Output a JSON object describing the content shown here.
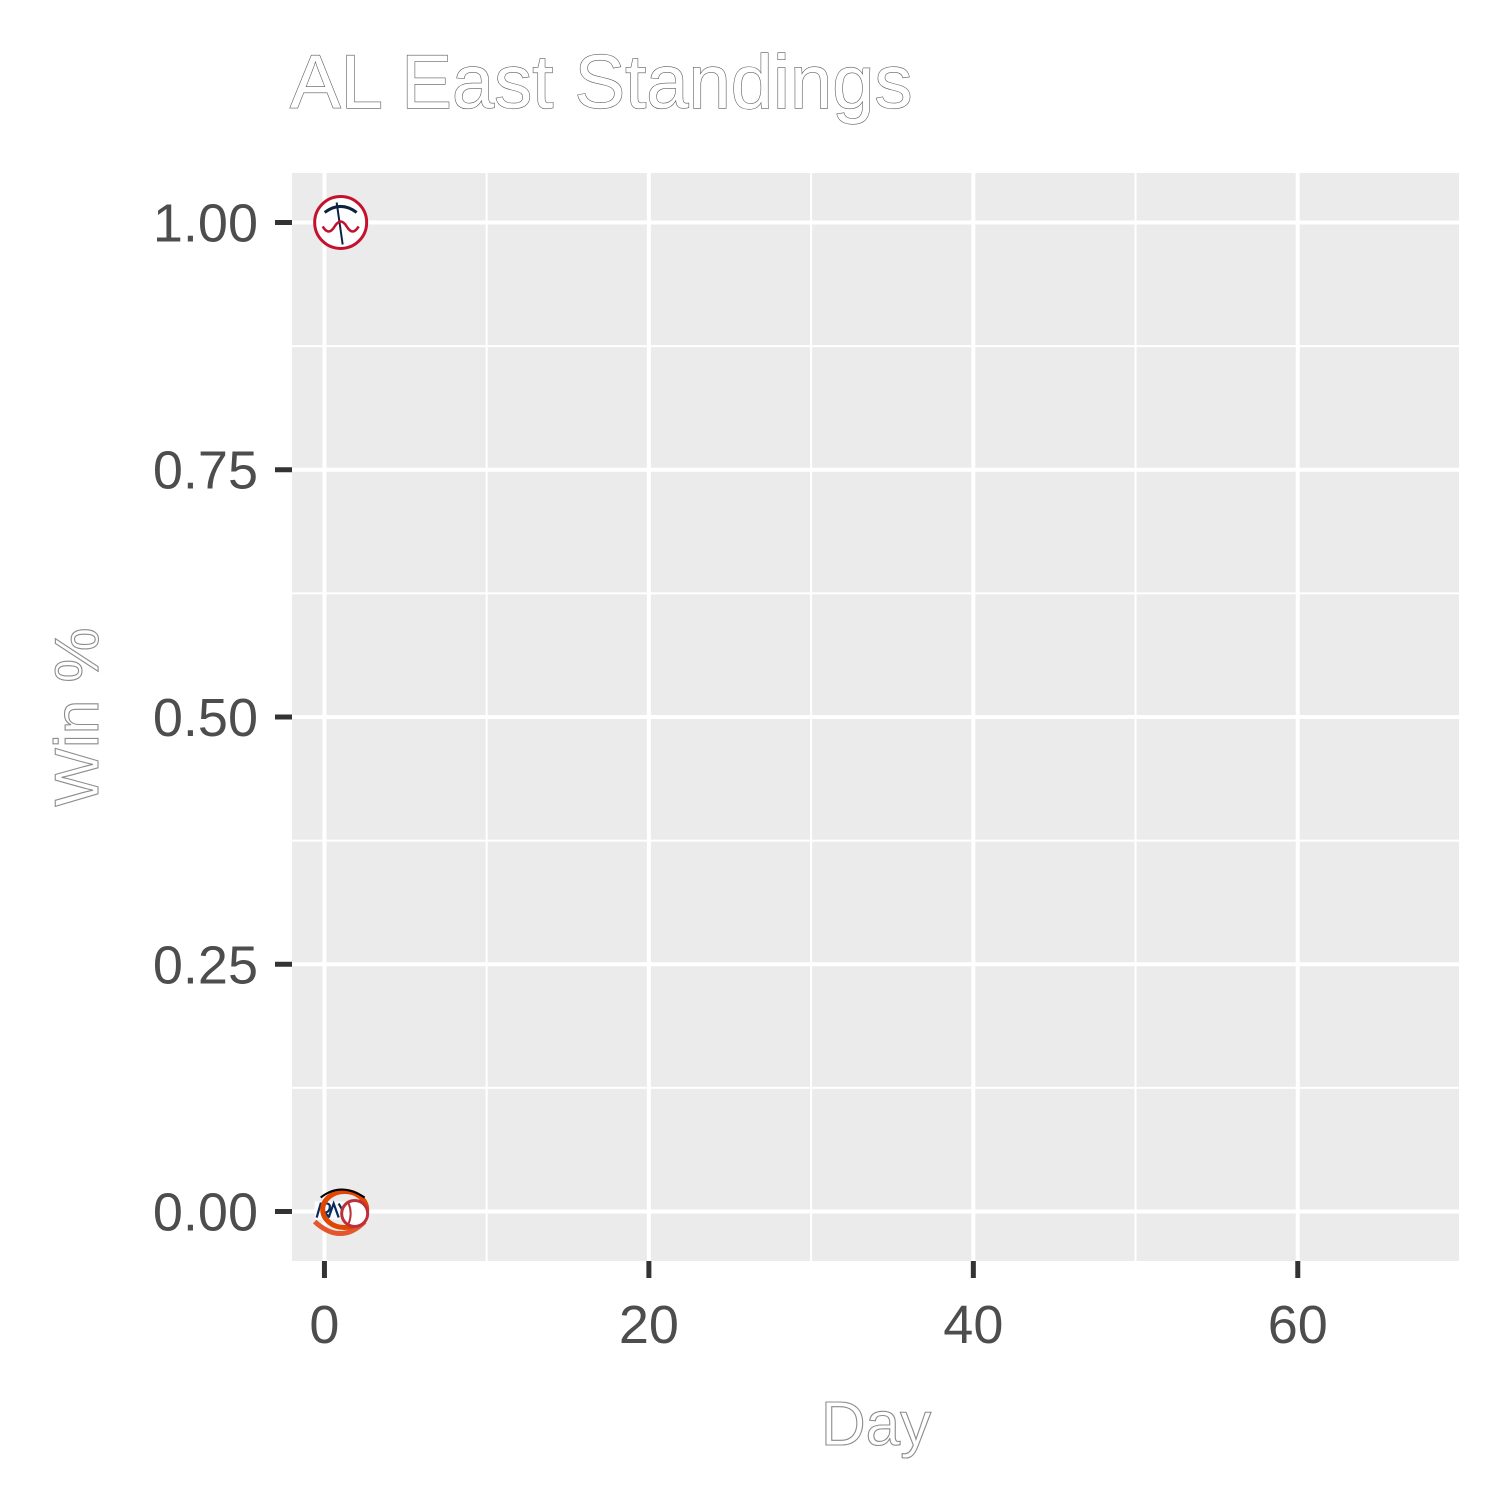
{
  "chart_data": {
    "type": "scatter",
    "title": "AL East Standings",
    "xlabel": "Day",
    "ylabel": "Win %",
    "xlim": [
      -2,
      70
    ],
    "ylim": [
      -0.05,
      1.05
    ],
    "x_ticks": [
      0,
      20,
      40,
      60
    ],
    "x_tick_labels": [
      "0",
      "20",
      "40",
      "60"
    ],
    "y_ticks": [
      0,
      0.25,
      0.5,
      0.75,
      1
    ],
    "y_tick_labels": [
      "0.00",
      "0.25",
      "0.50",
      "0.75",
      "1.00"
    ],
    "grid": true,
    "background": "#ebebeb",
    "points": [
      {
        "icon": "yankees-logo-icon",
        "x": 1,
        "y": 1.0,
        "color": "#c4122e",
        "accent": "#0c2340"
      },
      {
        "icon": "rays-logo-icon",
        "x": 1,
        "y": 0.0,
        "color": "#092c5c",
        "accent": "#e4572e"
      },
      {
        "icon": "orioles-logo-icon",
        "x": 1,
        "y": 0.0,
        "color": "#df4601",
        "accent": "#000000"
      },
      {
        "icon": "red-sox-logo-icon",
        "x": 1,
        "y": 0.0,
        "color": "#bd3039",
        "accent": "#0c2340"
      }
    ]
  }
}
